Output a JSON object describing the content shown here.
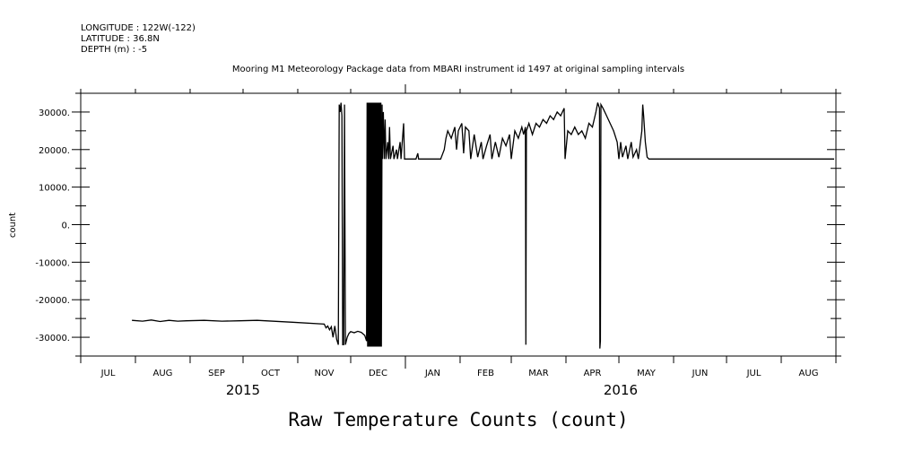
{
  "header": {
    "longitude": "LONGITUDE : 122W(-122)",
    "latitude": "LATITUDE : 36.8N",
    "depth": "DEPTH (m) : -5"
  },
  "chart_data": {
    "type": "line",
    "title": "Mooring M1 Meteorology Package data from MBARI instrument id 1497 at original sampling intervals",
    "xlabel": "Raw Temperature Counts (count)",
    "ylabel": "count",
    "x_unit": "days since 2015-07-01",
    "xlim": [
      0,
      428
    ],
    "ylim": [
      -35000,
      35000
    ],
    "yticks": [
      30000,
      20000,
      10000,
      0,
      -10000,
      -20000,
      -30000
    ],
    "ytick_labels": [
      "30000.",
      "20000.",
      "10000.",
      "0.",
      "-10000.",
      "-20000.",
      "-30000."
    ],
    "month_ticks": [
      0,
      31,
      62,
      92,
      123,
      153,
      184,
      215,
      244,
      275,
      305,
      336,
      366,
      397,
      428
    ],
    "month_labels": [
      "JUL",
      "AUG",
      "SEP",
      "OCT",
      "NOV",
      "DEC",
      "JAN",
      "FEB",
      "MAR",
      "APR",
      "MAY",
      "JUN",
      "JUL",
      "AUG"
    ],
    "years": [
      {
        "label": "2015",
        "day": 92
      },
      {
        "label": "2016",
        "day": 306
      }
    ],
    "grid": false,
    "series": [
      {
        "name": "Raw Temperature Counts",
        "points": [
          [
            29,
            -25500
          ],
          [
            35,
            -25700
          ],
          [
            40,
            -25400
          ],
          [
            45,
            -25800
          ],
          [
            50,
            -25500
          ],
          [
            55,
            -25700
          ],
          [
            60,
            -25600
          ],
          [
            70,
            -25500
          ],
          [
            80,
            -25700
          ],
          [
            90,
            -25600
          ],
          [
            100,
            -25500
          ],
          [
            120,
            -26000
          ],
          [
            138,
            -26500
          ],
          [
            139,
            -27500
          ],
          [
            140,
            -27000
          ],
          [
            141,
            -28000
          ],
          [
            142,
            -27200
          ],
          [
            143,
            -30000
          ],
          [
            144,
            -27000
          ],
          [
            145,
            -30500
          ],
          [
            146,
            -32000
          ],
          [
            146.5,
            32000
          ],
          [
            147,
            30000
          ],
          [
            147.5,
            32500
          ],
          [
            148,
            29000
          ],
          [
            148.5,
            -32000
          ],
          [
            149,
            -32000
          ],
          [
            149.5,
            32000
          ],
          [
            150,
            -32000
          ],
          [
            151,
            -30000
          ],
          [
            152,
            -29000
          ],
          [
            153,
            -28500
          ],
          [
            155,
            -28800
          ],
          [
            157,
            -28400
          ],
          [
            159,
            -28700
          ],
          [
            161,
            -29500
          ],
          [
            162,
            -31000
          ],
          [
            162.3,
            32500
          ],
          [
            162.6,
            -32500
          ],
          [
            162.9,
            32500
          ],
          [
            163.2,
            -32500
          ],
          [
            163.5,
            32500
          ],
          [
            163.8,
            -32500
          ],
          [
            164.1,
            32500
          ],
          [
            164.4,
            -32500
          ],
          [
            164.7,
            32500
          ],
          [
            165,
            -32500
          ],
          [
            165.3,
            32500
          ],
          [
            165.6,
            -32500
          ],
          [
            165.9,
            32500
          ],
          [
            166.2,
            -32500
          ],
          [
            166.5,
            32500
          ],
          [
            166.8,
            -32500
          ],
          [
            167.1,
            32500
          ],
          [
            167.4,
            -32500
          ],
          [
            167.7,
            32500
          ],
          [
            168,
            -32500
          ],
          [
            168.3,
            32500
          ],
          [
            168.6,
            -32500
          ],
          [
            168.9,
            32500
          ],
          [
            169.2,
            -32500
          ],
          [
            169.5,
            32500
          ],
          [
            169.8,
            -32500
          ],
          [
            170.1,
            32500
          ],
          [
            170.4,
            -32500
          ],
          [
            170.8,
            32000
          ],
          [
            171,
            17500
          ],
          [
            171.5,
            30000
          ],
          [
            172,
            17500
          ],
          [
            172.5,
            28000
          ],
          [
            173,
            17500
          ],
          [
            174,
            22000
          ],
          [
            174.5,
            17500
          ],
          [
            175,
            26000
          ],
          [
            175.5,
            17500
          ],
          [
            177,
            21000
          ],
          [
            177.5,
            17500
          ],
          [
            179,
            20000
          ],
          [
            179.5,
            17500
          ],
          [
            181,
            22000
          ],
          [
            181.5,
            17500
          ],
          [
            183,
            27000
          ],
          [
            183.5,
            17500
          ],
          [
            190,
            17500
          ],
          [
            191,
            19000
          ],
          [
            191.5,
            17500
          ],
          [
            200,
            17500
          ],
          [
            204,
            17500
          ],
          [
            206,
            20000
          ],
          [
            207,
            23000
          ],
          [
            208,
            25000
          ],
          [
            210,
            23000
          ],
          [
            212,
            26000
          ],
          [
            213,
            20000
          ],
          [
            214,
            25000
          ],
          [
            216,
            27000
          ],
          [
            217,
            19000
          ],
          [
            218,
            26000
          ],
          [
            220,
            25000
          ],
          [
            221,
            17500
          ],
          [
            223,
            24000
          ],
          [
            225,
            18000
          ],
          [
            227,
            22000
          ],
          [
            228,
            17500
          ],
          [
            230,
            21000
          ],
          [
            232,
            24000
          ],
          [
            233,
            17500
          ],
          [
            235,
            22000
          ],
          [
            237,
            18000
          ],
          [
            239,
            23000
          ],
          [
            241,
            21000
          ],
          [
            243,
            24000
          ],
          [
            244,
            17500
          ],
          [
            246,
            25000
          ],
          [
            248,
            23000
          ],
          [
            250,
            26000
          ],
          [
            251,
            24000
          ],
          [
            252,
            26000
          ],
          [
            252.3,
            -32000
          ],
          [
            252.6,
            25000
          ],
          [
            254,
            27000
          ],
          [
            256,
            24000
          ],
          [
            258,
            27000
          ],
          [
            260,
            26000
          ],
          [
            262,
            28000
          ],
          [
            264,
            27000
          ],
          [
            266,
            29000
          ],
          [
            268,
            28000
          ],
          [
            270,
            30000
          ],
          [
            272,
            29000
          ],
          [
            274,
            31000
          ],
          [
            274.5,
            17500
          ],
          [
            276,
            25000
          ],
          [
            278,
            24000
          ],
          [
            280,
            26000
          ],
          [
            282,
            24000
          ],
          [
            284,
            25000
          ],
          [
            286,
            23000
          ],
          [
            288,
            27000
          ],
          [
            290,
            26000
          ],
          [
            292,
            30000
          ],
          [
            293,
            32500
          ],
          [
            294,
            31000
          ],
          [
            294.2,
            -33000
          ],
          [
            294.5,
            -31000
          ],
          [
            294.8,
            32000
          ],
          [
            296,
            31000
          ],
          [
            298,
            29000
          ],
          [
            300,
            27000
          ],
          [
            302,
            25000
          ],
          [
            304,
            22000
          ],
          [
            305,
            17500
          ],
          [
            306,
            22000
          ],
          [
            307,
            18000
          ],
          [
            309,
            21000
          ],
          [
            310,
            17500
          ],
          [
            312,
            22000
          ],
          [
            313,
            18000
          ],
          [
            315,
            20000
          ],
          [
            316,
            17500
          ],
          [
            318,
            25000
          ],
          [
            318.5,
            32000
          ],
          [
            319,
            29000
          ],
          [
            320,
            22000
          ],
          [
            321,
            18000
          ],
          [
            322,
            17500
          ],
          [
            340,
            17500
          ],
          [
            360,
            17500
          ],
          [
            380,
            17500
          ],
          [
            400,
            17500
          ],
          [
            427,
            17500
          ]
        ]
      }
    ]
  }
}
